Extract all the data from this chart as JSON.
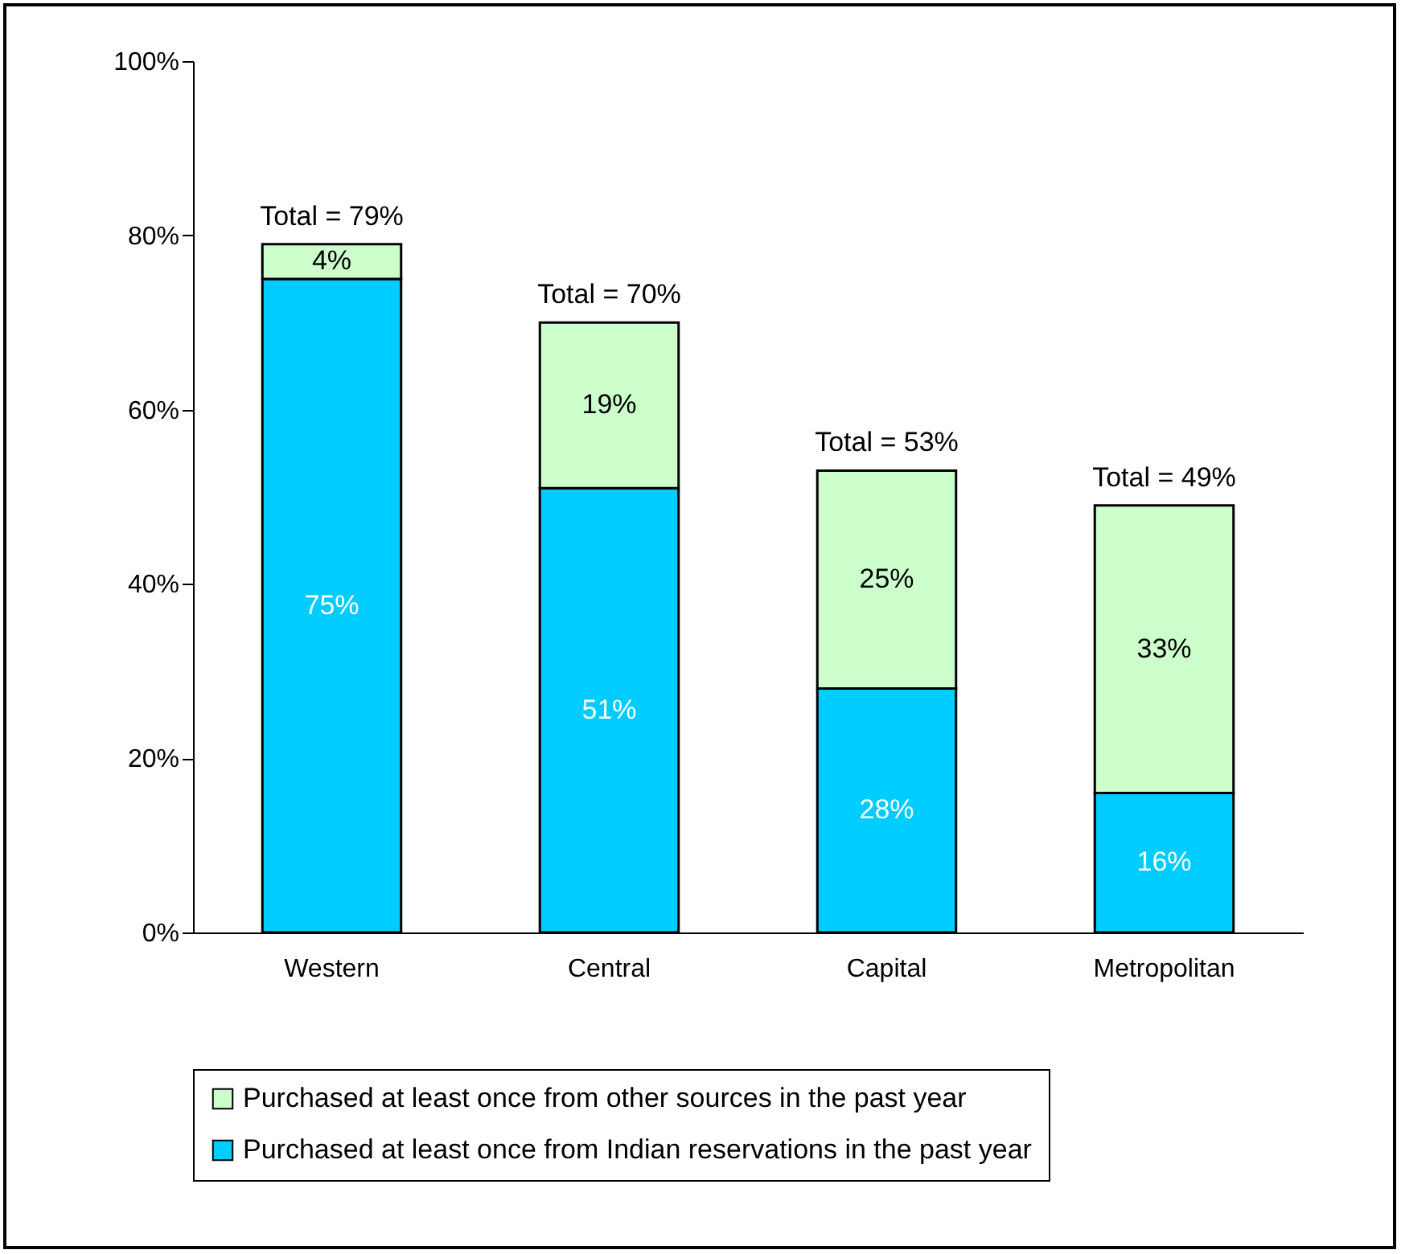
{
  "chart_data": {
    "type": "bar",
    "stacked": true,
    "categories": [
      "Western",
      "Central",
      "Capital",
      "Metropolitan"
    ],
    "series": [
      {
        "name": "Purchased at least once from Indian reservations in the past year",
        "color": "#00ccff",
        "values": [
          75,
          51,
          28,
          16
        ],
        "value_labels": [
          "75%",
          "51%",
          "28%",
          "16%"
        ]
      },
      {
        "name": "Purchased at least once from other sources in the past year",
        "color": "#ccffcc",
        "values": [
          4,
          19,
          25,
          33
        ],
        "value_labels": [
          "4%",
          "19%",
          "25%",
          "33%"
        ]
      }
    ],
    "totals": [
      "Total = 79%",
      "Total = 70%",
      "Total = 53%",
      "Total = 49%"
    ],
    "ylim": [
      0,
      100
    ],
    "yticks": [
      {
        "value": 0,
        "label": "0%"
      },
      {
        "value": 20,
        "label": "20%"
      },
      {
        "value": 40,
        "label": "40%"
      },
      {
        "value": 60,
        "label": "60%"
      },
      {
        "value": 80,
        "label": "80%"
      },
      {
        "value": 100,
        "label": "100%"
      }
    ],
    "grid": false,
    "legend": "bottom"
  }
}
